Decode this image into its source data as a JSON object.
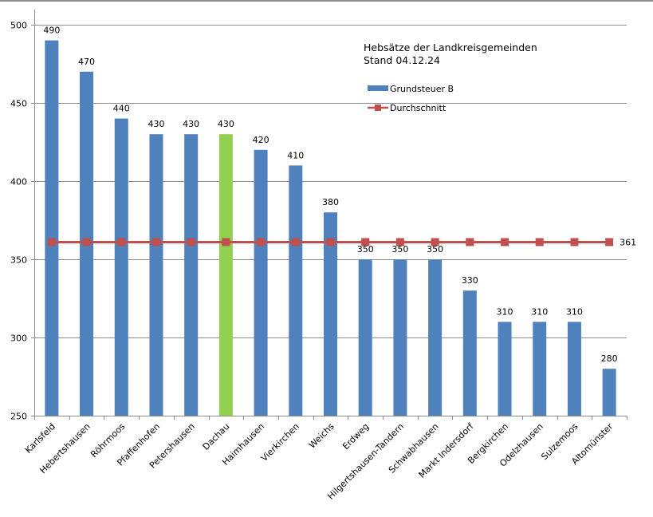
{
  "chart_data": {
    "type": "bar",
    "title": "Hebsätze der Landkreisgemeinden",
    "subtitle": "Stand 04.12.24",
    "xlabel": "",
    "ylabel": "",
    "ylim": [
      250,
      500
    ],
    "yticks": [
      250,
      300,
      350,
      400,
      450,
      500
    ],
    "grid": true,
    "legend_position": "top-right",
    "categories": [
      "Karlsfeld",
      "Hebertshausen",
      "Röhrmoos",
      "Pfaffenhofen",
      "Petershausen",
      "Dachau",
      "Haimhausen",
      "Vierkirchen",
      "Weichs",
      "Erdweg",
      "Hilgertshausen-Tandern",
      "Schwabhausen",
      "Markt Indersdorf",
      "Bergkirchen",
      "Odelzhausen",
      "Sulzemoos",
      "Altomünster"
    ],
    "series": [
      {
        "name": "Grundsteuer B",
        "type": "bar",
        "color": "#4f81bd",
        "highlight_color": "#92d050",
        "highlight_category": "Dachau",
        "values": [
          490,
          470,
          440,
          430,
          430,
          430,
          420,
          410,
          380,
          350,
          350,
          350,
          330,
          310,
          310,
          310,
          280
        ],
        "data_labels": [
          "490",
          "470",
          "440",
          "430",
          "430",
          "430",
          "420",
          "410",
          "380",
          "350",
          "350",
          "350",
          "330",
          "310",
          "310",
          "310",
          "280"
        ]
      },
      {
        "name": "Durchschnitt",
        "type": "line",
        "color": "#c0504d",
        "values": [
          361,
          361,
          361,
          361,
          361,
          361,
          361,
          361,
          361,
          361,
          361,
          361,
          361,
          361,
          361,
          361,
          361
        ],
        "end_label": "361"
      }
    ]
  }
}
